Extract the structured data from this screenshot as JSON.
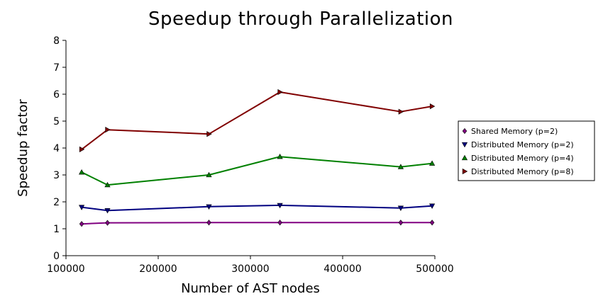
{
  "chart_data": {
    "type": "line",
    "title": "Speedup through Parallelization",
    "xlabel": "Number of AST nodes",
    "ylabel": "Speedup factor",
    "xlim": [
      100000,
      500000
    ],
    "ylim": [
      0,
      8
    ],
    "xticks": [
      100000,
      200000,
      300000,
      400000,
      500000
    ],
    "yticks": [
      0,
      1,
      2,
      3,
      4,
      5,
      6,
      7,
      8
    ],
    "grid": false,
    "legend_position": "right",
    "series": [
      {
        "name": "Shared Memory (p=2)",
        "color": "#800080",
        "marker": "diamond",
        "x": [
          117000,
          145000,
          255000,
          332000,
          463000,
          497000
        ],
        "y": [
          1.18,
          1.22,
          1.23,
          1.23,
          1.23,
          1.23
        ]
      },
      {
        "name": "Distributed Memory (p=2)",
        "color": "#000080",
        "marker": "triangle-down",
        "x": [
          117000,
          145000,
          255000,
          332000,
          463000,
          497000
        ],
        "y": [
          1.8,
          1.68,
          1.82,
          1.87,
          1.77,
          1.85
        ]
      },
      {
        "name": "Distributed Memory (p=4)",
        "color": "#008000",
        "marker": "triangle-up",
        "x": [
          117000,
          145000,
          255000,
          332000,
          463000,
          497000
        ],
        "y": [
          3.1,
          2.63,
          3.0,
          3.68,
          3.3,
          3.43
        ]
      },
      {
        "name": "Distributed Memory (p=8)",
        "color": "#800000",
        "marker": "triangle-right",
        "x": [
          117000,
          145000,
          255000,
          332000,
          463000,
          497000
        ],
        "y": [
          3.95,
          4.68,
          4.52,
          6.08,
          5.35,
          5.55
        ]
      }
    ]
  }
}
